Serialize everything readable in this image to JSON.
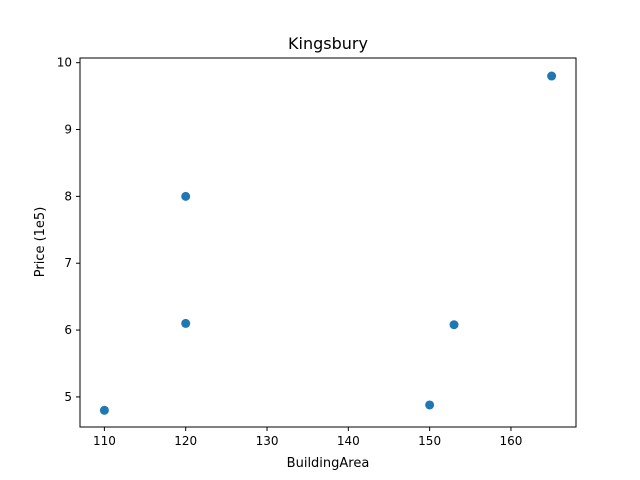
{
  "chart_data": {
    "type": "scatter",
    "title": "Kingsbury",
    "xlabel": "BuildingArea",
    "ylabel": "Price (1e5)",
    "xlim": [
      107,
      168
    ],
    "ylim": [
      4.55,
      10.07
    ],
    "xticks": [
      110,
      120,
      130,
      140,
      150,
      160
    ],
    "yticks": [
      5,
      6,
      7,
      8,
      9,
      10
    ],
    "grid": false,
    "marker_color": "#1f77b4",
    "points": [
      {
        "x": 110,
        "y": 4.8
      },
      {
        "x": 120,
        "y": 8.0
      },
      {
        "x": 120,
        "y": 6.1
      },
      {
        "x": 150,
        "y": 4.88
      },
      {
        "x": 153,
        "y": 6.08
      },
      {
        "x": 165,
        "y": 9.8
      }
    ]
  }
}
